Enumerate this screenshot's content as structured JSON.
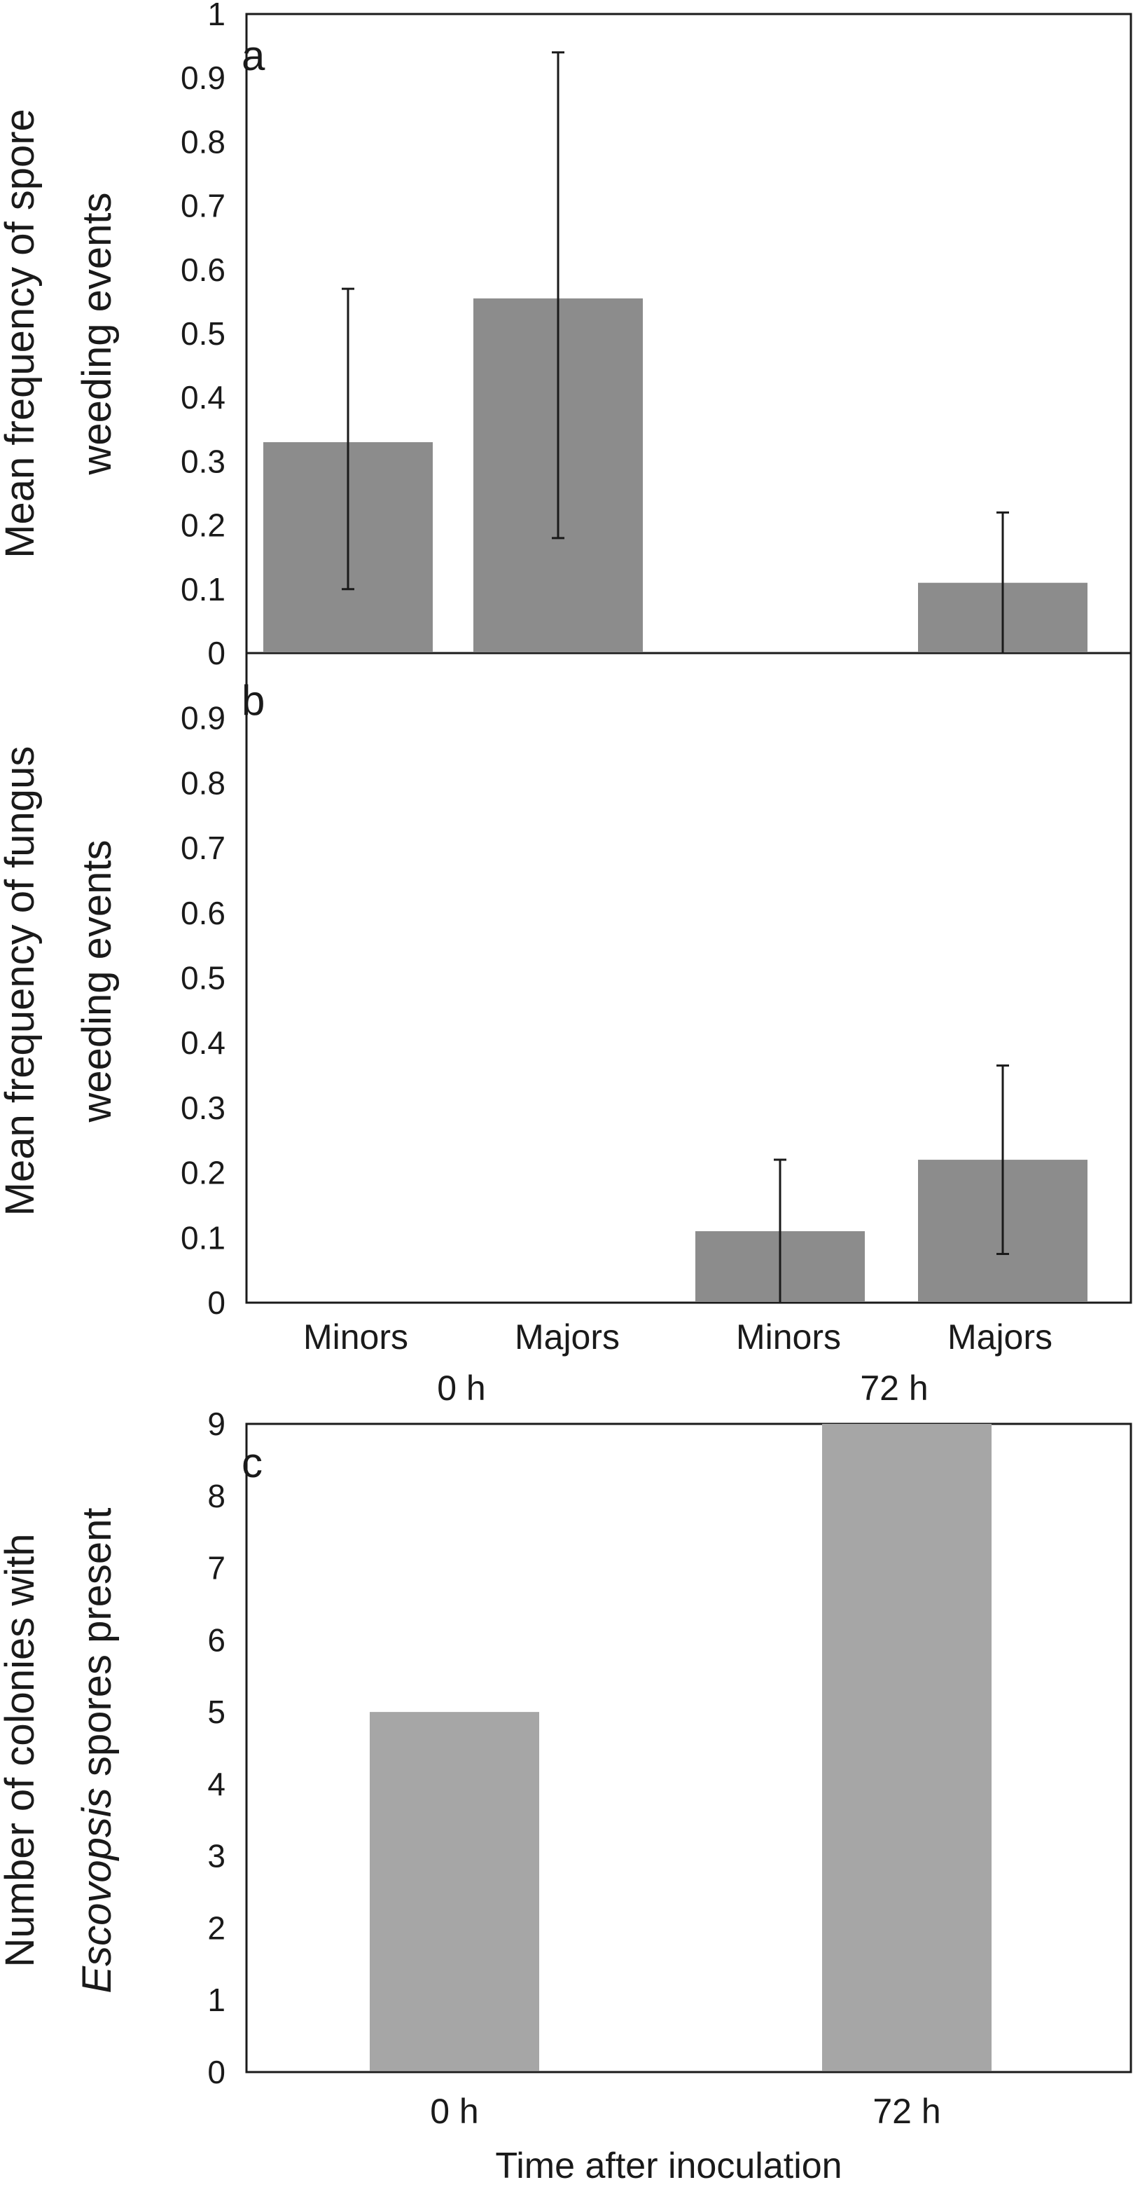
{
  "chart_data": [
    {
      "panel": "a",
      "type": "bar",
      "panel_label": "a",
      "ylabel_lines": [
        "Mean frequency of spore",
        "weeding events"
      ],
      "ylim": [
        0,
        1
      ],
      "yticks": [
        "0",
        "0.1",
        "0.2",
        "0.3",
        "0.4",
        "0.5",
        "0.6",
        "0.7",
        "0.8",
        "0.9",
        "1"
      ],
      "categories": [
        "Minors 0 h",
        "Majors 0 h",
        "Minors 72 h",
        "Majors 72 h"
      ],
      "values": [
        0.33,
        0.555,
        0.0,
        0.11
      ],
      "error_low": [
        0.1,
        0.18,
        null,
        0.0
      ],
      "error_high": [
        0.57,
        0.94,
        null,
        0.22
      ]
    },
    {
      "panel": "b",
      "type": "bar",
      "panel_label": "b",
      "ylabel_lines": [
        "Mean frequency of fungus",
        "weeding events"
      ],
      "ylim": [
        0,
        1
      ],
      "yticks": [
        "0",
        "0.1",
        "0.2",
        "0.3",
        "0.4",
        "0.5",
        "0.6",
        "0.7",
        "0.8",
        "0.9"
      ],
      "categories": [
        "Minors 0 h",
        "Majors 0 h",
        "Minors 72 h",
        "Majors 72 h"
      ],
      "values": [
        0.0,
        0.0,
        0.11,
        0.22
      ],
      "error_low": [
        null,
        null,
        0.0,
        0.075
      ],
      "error_high": [
        null,
        null,
        0.22,
        0.365
      ],
      "xtick_labels": [
        "Minors",
        "Majors",
        "Minors",
        "Majors"
      ],
      "group_labels": [
        "0 h",
        "72 h"
      ]
    },
    {
      "panel": "c",
      "type": "bar",
      "panel_label": "c",
      "ylabel_line1": "Number of colonies with",
      "ylabel_line2_italic": "Escovopsis",
      "ylabel_line2_rest": " spores present",
      "ylim": [
        0,
        9
      ],
      "yticks": [
        "0",
        "1",
        "2",
        "3",
        "4",
        "5",
        "6",
        "7",
        "8",
        "9"
      ],
      "categories": [
        "0 h",
        "72 h"
      ],
      "values": [
        5,
        9
      ],
      "xlabel": "Time after inoculation"
    }
  ],
  "colors": {
    "bar_ab": "#8c8c8c",
    "bar_c": "#a6a6a6",
    "axis": "#1a1a1a"
  }
}
